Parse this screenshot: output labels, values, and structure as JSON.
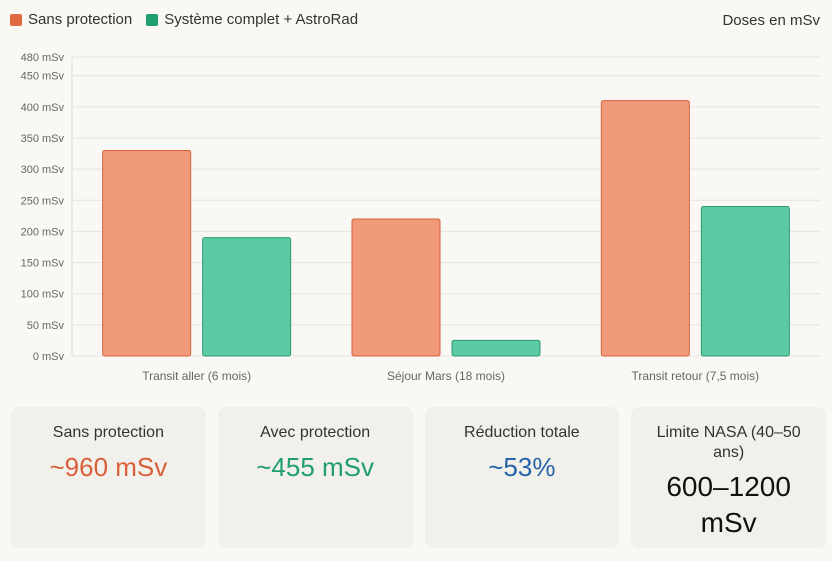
{
  "chart_data": {
    "type": "bar",
    "title": "",
    "units_label": "Doses en mSv",
    "categories": [
      "Transit aller (6 mois)",
      "Séjour Mars (18 mois)",
      "Transit retour (7,5 mois)"
    ],
    "series": [
      {
        "name": "Sans protection",
        "values": [
          330,
          220,
          410
        ],
        "color": "#f09a7a",
        "border": "#d9603a"
      },
      {
        "name": "Système complet + AstroRad",
        "values": [
          190,
          25,
          240
        ],
        "color": "#5ccaa4",
        "border": "#2a9a72"
      }
    ],
    "yticks": [
      0,
      50,
      100,
      150,
      200,
      250,
      300,
      350,
      400,
      450,
      480
    ],
    "tick_suffix": " mSv",
    "ylim": [
      0,
      480
    ],
    "grid": true,
    "legend": "top-left"
  },
  "cards": [
    {
      "label": "Sans protection",
      "value": "~960 mSv",
      "color": "#d9603a"
    },
    {
      "label": "Avec protection",
      "value": "~455 mSv",
      "color": "#1f9e70"
    },
    {
      "label": "Réduction totale",
      "value": "~53%",
      "color": "#2563a8"
    },
    {
      "label": "Limite NASA (40–50 ans)",
      "value": "600–1200 mSv",
      "color": "#111111"
    }
  ]
}
